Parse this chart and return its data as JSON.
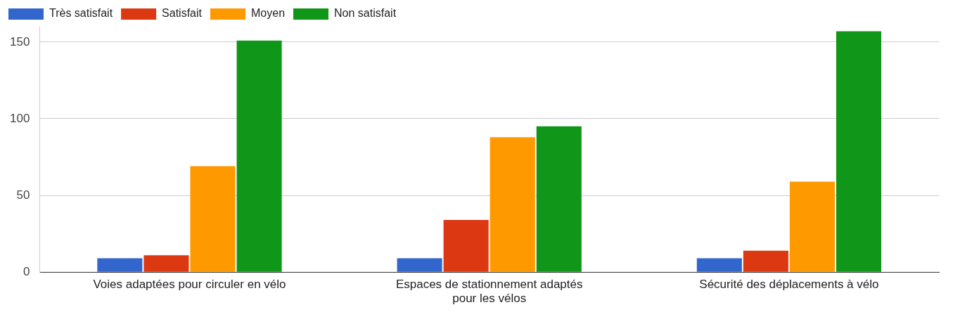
{
  "chart_data": {
    "type": "bar",
    "categories": [
      "Voies adaptées pour circuler en vélo",
      "Espaces de stationnement adaptés pour les vélos",
      "Sécurité des déplacements à vélo"
    ],
    "series": [
      {
        "name": "Très satisfait",
        "color": "#3366cc",
        "values": [
          9,
          9,
          9
        ]
      },
      {
        "name": "Satisfait",
        "color": "#dc3912",
        "values": [
          11,
          34,
          14
        ]
      },
      {
        "name": "Moyen",
        "color": "#ff9900",
        "values": [
          69,
          88,
          59
        ]
      },
      {
        "name": "Non satisfait",
        "color": "#109618",
        "values": [
          151,
          95,
          157
        ]
      }
    ],
    "ylim": [
      0,
      160
    ],
    "yticks": [
      0,
      50,
      100,
      150
    ],
    "grid": "y",
    "legend": "top left"
  }
}
